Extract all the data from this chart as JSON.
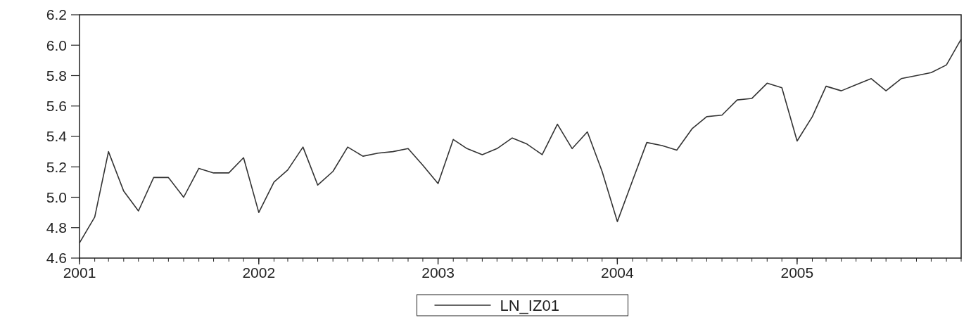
{
  "chart_data": {
    "type": "line",
    "x": [
      "2001-01",
      "2001-02",
      "2001-03",
      "2001-04",
      "2001-05",
      "2001-06",
      "2001-07",
      "2001-08",
      "2001-09",
      "2001-10",
      "2001-11",
      "2001-12",
      "2002-01",
      "2002-02",
      "2002-03",
      "2002-04",
      "2002-05",
      "2002-06",
      "2002-07",
      "2002-08",
      "2002-09",
      "2002-10",
      "2002-11",
      "2002-12",
      "2003-01",
      "2003-02",
      "2003-03",
      "2003-04",
      "2003-05",
      "2003-06",
      "2003-07",
      "2003-08",
      "2003-09",
      "2003-10",
      "2003-11",
      "2003-12",
      "2004-01",
      "2004-02",
      "2004-03",
      "2004-04",
      "2004-05",
      "2004-06",
      "2004-07",
      "2004-08",
      "2004-09",
      "2004-10",
      "2004-11",
      "2004-12",
      "2005-01",
      "2005-02",
      "2005-03",
      "2005-04",
      "2005-05",
      "2005-06",
      "2005-07",
      "2005-08",
      "2005-09",
      "2005-10",
      "2005-11",
      "2005-12"
    ],
    "series": [
      {
        "name": "LN_IZ01",
        "color": "#333333",
        "values": [
          4.7,
          4.87,
          5.3,
          5.04,
          4.91,
          5.13,
          5.13,
          5.0,
          5.19,
          5.16,
          5.16,
          5.26,
          4.9,
          5.1,
          5.18,
          5.33,
          5.08,
          5.17,
          5.33,
          5.27,
          5.29,
          5.3,
          5.32,
          5.21,
          5.09,
          5.38,
          5.32,
          5.28,
          5.32,
          5.39,
          5.35,
          5.28,
          5.48,
          5.32,
          5.43,
          5.17,
          4.84,
          5.11,
          5.36,
          5.34,
          5.31,
          5.45,
          5.53,
          5.54,
          5.64,
          5.65,
          5.75,
          5.72,
          5.37,
          5.53,
          5.73,
          5.7,
          5.74,
          5.78,
          5.7,
          5.78,
          5.8,
          5.82,
          5.87,
          6.04
        ]
      }
    ],
    "xlim": [
      "2001-01",
      "2005-12"
    ],
    "xticks": [
      "2001",
      "2002",
      "2003",
      "2004",
      "2005"
    ],
    "ylim": [
      4.6,
      6.2
    ],
    "yticks": [
      {
        "value": 4.6,
        "label": "4.6"
      },
      {
        "value": 4.8,
        "label": "4.8"
      },
      {
        "value": 5.0,
        "label": "5.0"
      },
      {
        "value": 5.2,
        "label": "5.2"
      },
      {
        "value": 5.4,
        "label": "5.4"
      },
      {
        "value": 5.6,
        "label": "5.6"
      },
      {
        "value": 5.8,
        "label": "5.8"
      },
      {
        "value": 6.0,
        "label": "6.0"
      },
      {
        "value": 6.2,
        "label": "6.2"
      }
    ],
    "grid": false,
    "legend": "bottom",
    "marker": "none",
    "line_style": "solid"
  }
}
